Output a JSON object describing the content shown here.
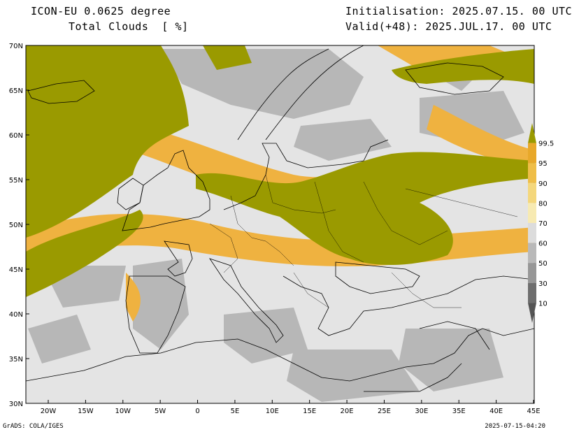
{
  "header": {
    "model": "ICON-EU 0.0625 degree",
    "field": "Total Clouds  [ %]",
    "init": "Initialisation: 2025.07.15. 00 UTC",
    "valid": "Valid(+48): 2025.JUL.17. 00 UTC"
  },
  "axes": {
    "lon_labels": [
      "20W",
      "15W",
      "10W",
      "5W",
      "0",
      "5E",
      "10E",
      "15E",
      "20E",
      "25E",
      "30E",
      "35E",
      "40E",
      "45E"
    ],
    "lat_labels": [
      "70N",
      "65N",
      "60N",
      "55N",
      "50N",
      "45N",
      "40N",
      "35N",
      "30N"
    ]
  },
  "colorbar": {
    "labels": [
      "99.5",
      "95",
      "90",
      "80",
      "70",
      "60",
      "50",
      "30",
      "10"
    ],
    "colors": [
      "#9a9a00",
      "#e8a82a",
      "#efbe48",
      "#f4d77c",
      "#f7eab2",
      "#dcdcdc",
      "#b9b9b9",
      "#979797",
      "#6e6e6e",
      "#555555"
    ]
  },
  "colors": {
    "sea_clear": "#e4e4e4",
    "overcast": "#9a9a00",
    "orange": "#efb240",
    "gray": "#a8a8a8"
  },
  "footer": {
    "left": "GrADS: COLA/IGES",
    "right": "2025-07-15-04:20"
  }
}
